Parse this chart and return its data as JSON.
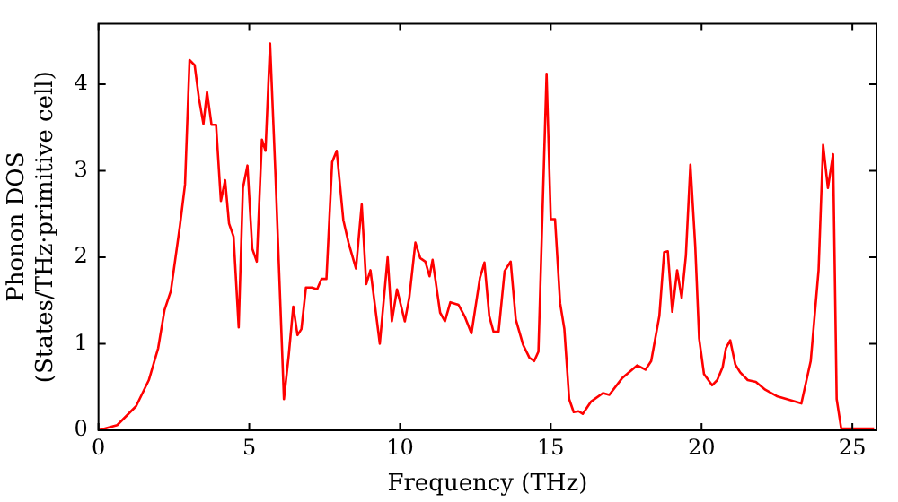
{
  "chart_data": {
    "type": "line",
    "xlabel": "Frequency (THz)",
    "ylabel": "Phonon DOS\n(States/THz·primitive cell)",
    "xlim": [
      0,
      25.8
    ],
    "xticks": [
      0,
      5,
      10,
      15,
      20,
      25
    ],
    "ylim": [
      0,
      4.7
    ],
    "yticks": [
      0,
      1,
      2,
      3,
      4
    ],
    "grid": false,
    "legend": false,
    "marker": "none",
    "line_style": "solid",
    "series": [
      {
        "color": "#ff0000",
        "x": [
          0,
          0.62,
          1.25,
          1.67,
          1.98,
          2.19,
          2.4,
          2.7,
          2.87,
          3.02,
          3.19,
          3.33,
          3.48,
          3.6,
          3.75,
          3.9,
          4.06,
          4.2,
          4.33,
          4.48,
          4.65,
          4.79,
          4.94,
          5.1,
          5.25,
          5.42,
          5.54,
          5.69,
          5.87,
          6.15,
          6.31,
          6.46,
          6.6,
          6.73,
          6.88,
          7.08,
          7.25,
          7.4,
          7.56,
          7.75,
          7.9,
          8.12,
          8.29,
          8.54,
          8.73,
          8.88,
          9.02,
          9.33,
          9.59,
          9.73,
          9.9,
          10.16,
          10.31,
          10.51,
          10.67,
          10.84,
          10.98,
          11.08,
          11.33,
          11.49,
          11.67,
          11.94,
          12.14,
          12.37,
          12.65,
          12.8,
          12.96,
          13.1,
          13.27,
          13.47,
          13.67,
          13.84,
          14.08,
          14.29,
          14.45,
          14.59,
          14.86,
          15.0,
          15.14,
          15.31,
          15.45,
          15.61,
          15.76,
          15.92,
          16.06,
          16.33,
          16.73,
          16.94,
          17.36,
          17.87,
          18.14,
          18.33,
          18.6,
          18.76,
          18.88,
          19.03,
          19.19,
          19.34,
          19.48,
          19.63,
          19.79,
          19.92,
          20.08,
          20.35,
          20.52,
          20.7,
          20.81,
          20.95,
          21.12,
          21.28,
          21.53,
          21.8,
          22.11,
          22.52,
          22.93,
          23.31,
          23.62,
          23.88,
          24.03,
          24.19,
          24.36,
          24.48,
          24.63,
          25.72
        ],
        "values": [
          0,
          0.06,
          0.28,
          0.58,
          0.95,
          1.39,
          1.61,
          2.36,
          2.84,
          4.28,
          4.22,
          3.84,
          3.54,
          3.91,
          3.53,
          3.53,
          2.65,
          2.89,
          2.39,
          2.24,
          1.19,
          2.8,
          3.06,
          2.1,
          1.95,
          3.36,
          3.23,
          4.47,
          2.95,
          0.36,
          0.87,
          1.43,
          1.1,
          1.17,
          1.65,
          1.65,
          1.63,
          1.75,
          1.75,
          3.1,
          3.23,
          2.43,
          2.17,
          1.87,
          2.61,
          1.69,
          1.85,
          1.0,
          2.0,
          1.26,
          1.63,
          1.26,
          1.54,
          2.17,
          1.99,
          1.95,
          1.78,
          1.97,
          1.36,
          1.26,
          1.48,
          1.45,
          1.32,
          1.12,
          1.76,
          1.94,
          1.32,
          1.14,
          1.14,
          1.84,
          1.95,
          1.28,
          0.99,
          0.84,
          0.8,
          0.91,
          4.12,
          2.44,
          2.44,
          1.47,
          1.17,
          0.36,
          0.21,
          0.22,
          0.19,
          0.33,
          0.43,
          0.41,
          0.6,
          0.75,
          0.7,
          0.8,
          1.32,
          2.06,
          2.07,
          1.37,
          1.85,
          1.53,
          2.02,
          3.07,
          2.13,
          1.06,
          0.65,
          0.52,
          0.58,
          0.73,
          0.95,
          1.04,
          0.76,
          0.67,
          0.58,
          0.56,
          0.47,
          0.39,
          0.35,
          0.31,
          0.8,
          1.85,
          3.3,
          2.8,
          3.19,
          0.36,
          0.02,
          0.02
        ]
      }
    ]
  }
}
